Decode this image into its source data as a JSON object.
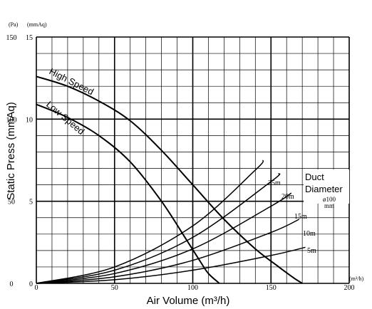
{
  "chart_data": {
    "type": "line",
    "xlabel": "Air Volume (m³/h)",
    "ylabel": "Static Press (mmAq)",
    "x_unit": "(m³/h)",
    "y_unit_left": "(Pa)",
    "y_unit_right": "(mmAq)",
    "xlim": [
      0,
      200
    ],
    "ylim": [
      0,
      15
    ],
    "x_ticks": [
      0,
      50,
      100,
      150,
      200
    ],
    "x_tick_labels": [
      "0",
      "50",
      "100",
      "150",
      "200"
    ],
    "y_ticks": [
      0,
      5,
      10,
      15
    ],
    "y_tick_labels_pa": [
      "0",
      "50",
      "100",
      "150"
    ],
    "y_tick_labels_mmaq": [
      "0",
      "5",
      "10",
      "15"
    ],
    "grid": true,
    "fan_curves": [
      {
        "name": "High Speed",
        "x": [
          0,
          20,
          40,
          60,
          80,
          100,
          120,
          140,
          155,
          165,
          170
        ],
        "y": [
          12.6,
          12.0,
          11.1,
          9.9,
          8.1,
          6.0,
          3.9,
          2.1,
          1.0,
          0.3,
          0.0
        ]
      },
      {
        "name": "Low Speed",
        "x": [
          0,
          20,
          40,
          60,
          80,
          95,
          105,
          110,
          117
        ],
        "y": [
          10.9,
          10.1,
          9.0,
          7.4,
          5.0,
          2.8,
          1.3,
          0.6,
          0.0
        ]
      }
    ],
    "duct_curves": [
      {
        "name": "25m",
        "x": [
          0,
          50,
          100,
          140,
          145
        ],
        "y": [
          0,
          1.0,
          3.5,
          6.9,
          7.5
        ]
      },
      {
        "name": "20m",
        "x": [
          0,
          50,
          100,
          150,
          155
        ],
        "y": [
          0,
          0.8,
          2.8,
          6.2,
          6.7
        ]
      },
      {
        "name": "15m",
        "x": [
          0,
          50,
          100,
          150,
          163
        ],
        "y": [
          0,
          0.6,
          2.1,
          4.7,
          5.5
        ]
      },
      {
        "name": "10m",
        "x": [
          0,
          50,
          100,
          150,
          168
        ],
        "y": [
          0,
          0.4,
          1.4,
          3.1,
          3.9
        ]
      },
      {
        "name": "5m",
        "x": [
          0,
          50,
          100,
          150,
          172
        ],
        "y": [
          0,
          0.22,
          0.8,
          1.7,
          2.2
        ]
      }
    ],
    "legend": {
      "title_line1": "Duct",
      "title_line2": "Diameter",
      "diameter": "ø100",
      "diameter_unit": "mm"
    },
    "colors": {
      "line": "#000000",
      "grid": "#000000",
      "background": "#ffffff"
    }
  }
}
